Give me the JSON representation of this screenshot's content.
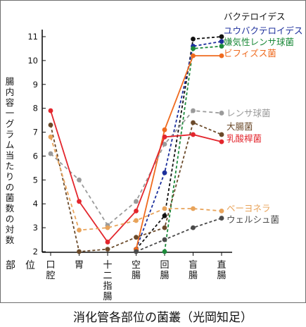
{
  "caption": "消化管各部位の菌叢（光岡知足）",
  "chart_data": {
    "type": "line",
    "title": "",
    "ylabel": "腸内容一グラム当たりの菌数の対数",
    "xlabel": "部　位",
    "ylim": [
      2,
      11.5
    ],
    "yticks": [
      2,
      3,
      4,
      5,
      6,
      7,
      8,
      9,
      10,
      11
    ],
    "categories": [
      "口腔",
      "胃",
      "十二指腸",
      "空腸",
      "回腸",
      "盲腸",
      "直腸"
    ],
    "series": [
      {
        "name": "バクテロイデス",
        "color": "#111111",
        "dash": "4,3",
        "values": [
          null,
          null,
          null,
          2.1,
          3.5,
          10.9,
          11.0
        ]
      },
      {
        "name": "ユウバクテロイデス",
        "color": "#1c2f9c",
        "dash": "4,3",
        "values": [
          null,
          null,
          null,
          2.1,
          5.3,
          10.6,
          10.8
        ]
      },
      {
        "name": "嫌気性レンサ球菌",
        "color": "#1c8a3a",
        "dash": "4,3",
        "values": [
          null,
          null,
          null,
          null,
          2.0,
          10.5,
          10.6
        ]
      },
      {
        "name": "ビフィズス菌",
        "color": "#ef6a1e",
        "dash": "",
        "values": [
          null,
          null,
          null,
          2.1,
          7.1,
          10.2,
          10.2
        ]
      },
      {
        "name": "レンサ球菌",
        "color": "#9a9a9a",
        "dash": "5,4",
        "values": [
          6.1,
          5.0,
          3.1,
          4.1,
          6.5,
          7.9,
          7.8
        ]
      },
      {
        "name": "大腸菌",
        "color": "#6b4a2a",
        "dash": "4,3",
        "values": [
          7.3,
          2.0,
          2.1,
          2.6,
          3.0,
          7.4,
          6.9
        ]
      },
      {
        "name": "乳酸桿菌",
        "color": "#e3262d",
        "dash": "",
        "values": [
          7.9,
          4.1,
          2.4,
          3.7,
          6.8,
          6.9,
          6.6
        ]
      },
      {
        "name": "ベーヨネラ",
        "color": "#e8a35a",
        "dash": "5,4",
        "values": [
          6.8,
          2.9,
          3.0,
          3.3,
          3.8,
          3.8,
          3.7
        ]
      },
      {
        "name": "ウェルシュ菌",
        "color": "#4a4a4a",
        "dash": "4,3",
        "values": [
          null,
          null,
          null,
          2.0,
          2.5,
          3.0,
          3.4
        ]
      }
    ]
  }
}
